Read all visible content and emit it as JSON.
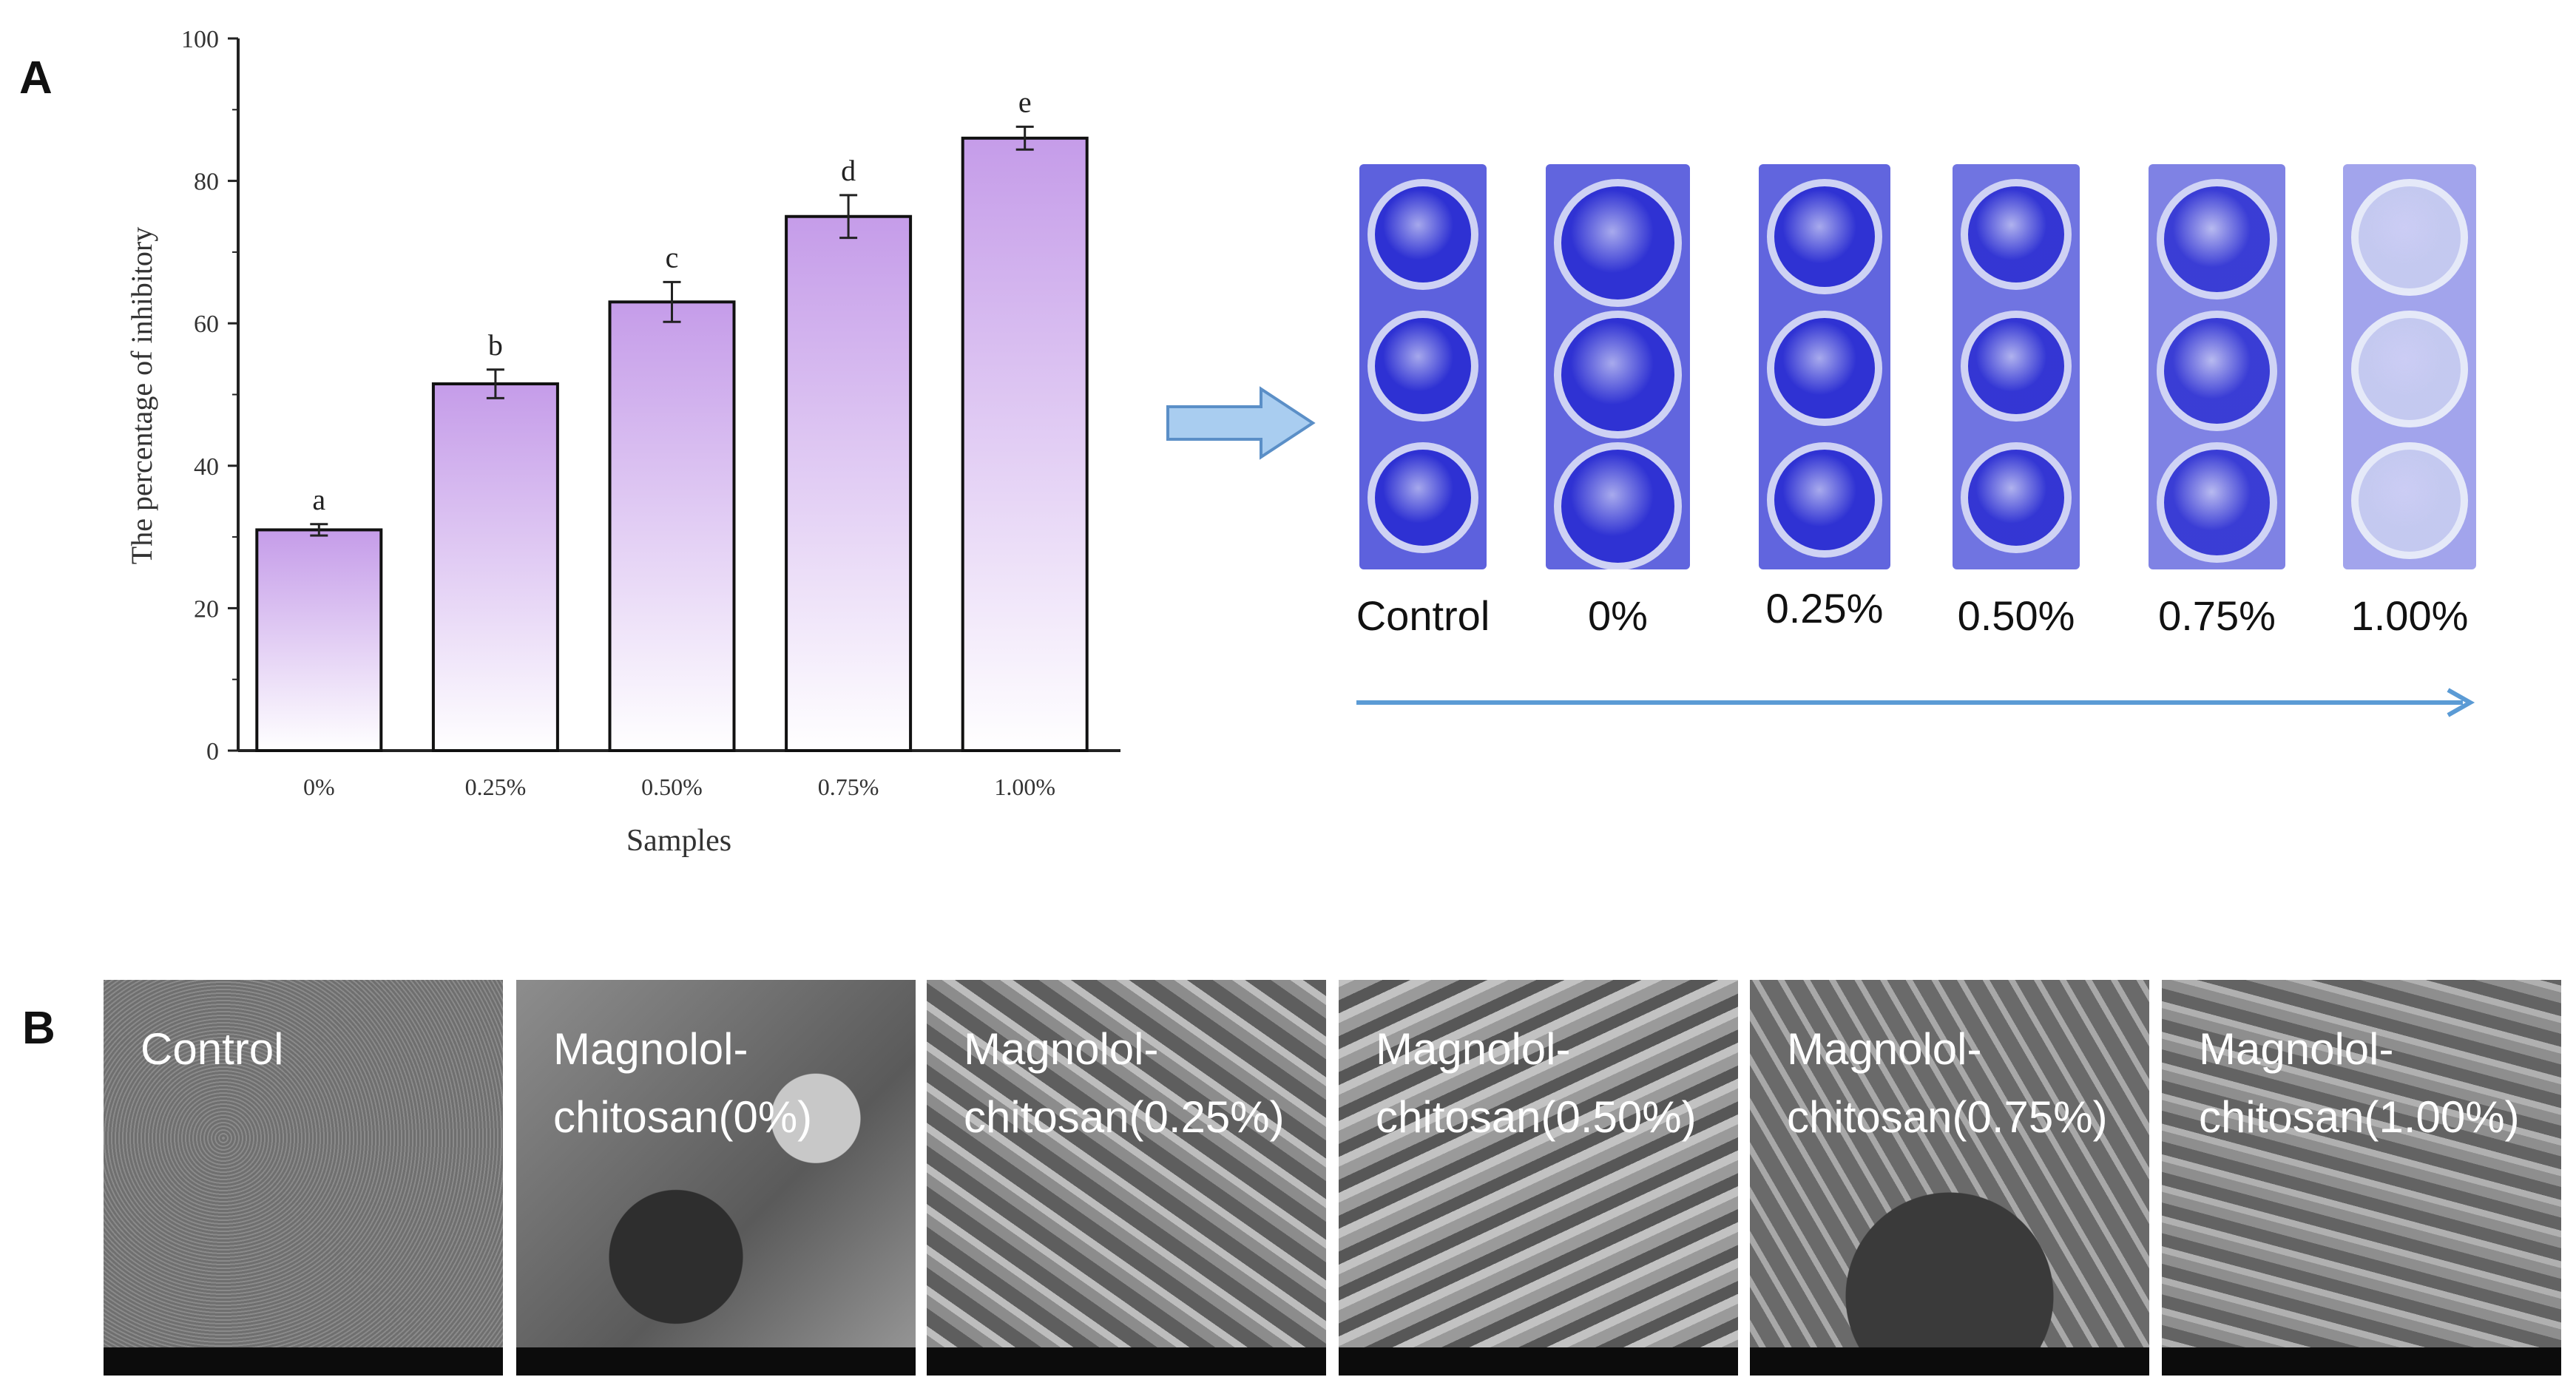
{
  "panels": {
    "a": "A",
    "b": "B"
  },
  "chart_data": {
    "type": "bar",
    "categories": [
      "0%",
      "0.25%",
      "0.50%",
      "0.75%",
      "1.00%"
    ],
    "values": [
      31,
      51.5,
      63,
      75,
      86
    ],
    "errors": [
      0.8,
      2.0,
      2.8,
      3.0,
      1.6
    ],
    "significance": [
      "a",
      "b",
      "c",
      "d",
      "e"
    ],
    "xlabel": "Samples",
    "ylabel": "The percentage of inhibitory",
    "ylim": [
      0,
      100
    ],
    "yticks": [
      0,
      20,
      40,
      60,
      80,
      100
    ],
    "colors": {
      "bar_top": "#c59ce9",
      "bar_bottom": "#ffffff",
      "stroke": "#111111"
    }
  },
  "plates": {
    "labels": [
      "Control",
      "0%",
      "0.25%",
      "0.50%",
      "0.75%",
      "1.00%"
    ],
    "stain_intensity": [
      0.95,
      0.9,
      0.9,
      0.75,
      0.6,
      0.25
    ],
    "stain_color": "#3a3fd6",
    "arrow_color": "#5b9bd5"
  },
  "sem": {
    "labels": [
      "Control",
      "Magnolol-\nchitosan(0%)",
      "Magnolol-\nchitosan(0.25%)",
      "Magnolol-\nchitosan(0.50%)",
      "Magnolol-\nchitosan(0.75%)",
      "Magnolol-\nchitosan(1.00%)"
    ]
  }
}
